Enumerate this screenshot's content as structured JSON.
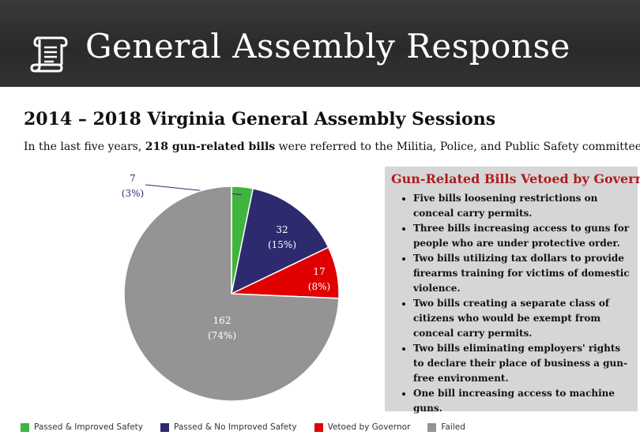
{
  "banner": {
    "title": "General Assembly Response",
    "icon": "scroll-icon"
  },
  "section_title": "2014 – 2018 Virginia General Assembly Sessions",
  "intro": {
    "prefix": "In the last five years, ",
    "highlight": "218 gun-related bills",
    "suffix": " were referred to the Militia, Police, and Public Safety committee."
  },
  "veto_panel": {
    "title": "Gun-Related Bills Vetoed by Governor",
    "items": [
      "Five bills loosening restrictions on conceal carry permits.",
      "Three bills increasing access to guns for people who are under protective order.",
      "Two bills utilizing tax dollars to provide firearms training for victims of domestic violence.",
      "Two bills creating a separate class of citizens who would be exempt from conceal carry permits.",
      "Two bills eliminating employers' rights to declare their place of business a gun-free environment.",
      "One bill increasing access to machine guns."
    ]
  },
  "chart_data": {
    "type": "pie",
    "title": "",
    "slices": [
      {
        "name": "Passed & Improved Safety",
        "value": 7,
        "percent": "3%",
        "color": "#3fb43f"
      },
      {
        "name": "Passed & No Improved Safety",
        "value": 32,
        "percent": "15%",
        "color": "#2e2a6e"
      },
      {
        "name": "Vetoed by Governor",
        "value": 17,
        "percent": "8%",
        "color": "#e00000"
      },
      {
        "name": "Failed",
        "value": 162,
        "percent": "74%",
        "color": "#949494"
      }
    ],
    "legend_position": "bottom"
  }
}
